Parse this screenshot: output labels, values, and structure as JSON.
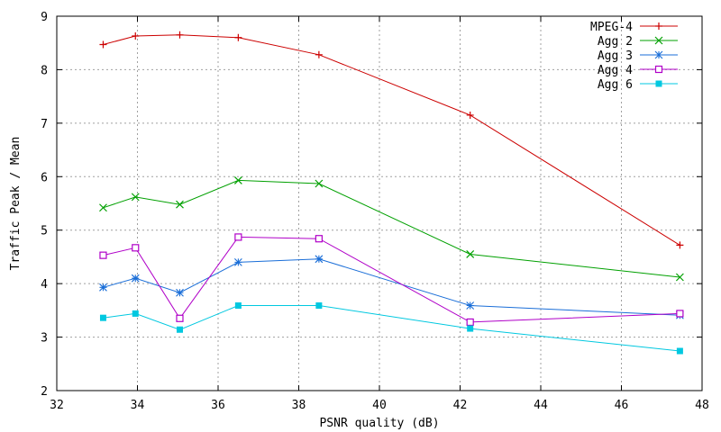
{
  "chart_data": {
    "type": "line",
    "title": "",
    "xlabel": "PSNR quality (dB)",
    "ylabel": "Traffic Peak / Mean",
    "xlim": [
      32,
      48
    ],
    "ylim": [
      2,
      9
    ],
    "xticks": [
      "32",
      "34",
      "36",
      "38",
      "40",
      "42",
      "44",
      "46",
      "48"
    ],
    "yticks": [
      "2",
      "3",
      "4",
      "5",
      "6",
      "7",
      "8",
      "9"
    ],
    "grid": true,
    "legend_position": "top-right",
    "x": [
      33.15,
      33.95,
      35.05,
      36.5,
      38.5,
      42.25,
      47.45
    ],
    "series": [
      {
        "name": "MPEG-4",
        "color": "#cc0000",
        "marker": "plus",
        "values": [
          8.47,
          8.63,
          8.65,
          8.6,
          8.28,
          7.15,
          4.72
        ]
      },
      {
        "name": "Agg 2",
        "color": "#00a000",
        "marker": "cross",
        "values": [
          5.42,
          5.62,
          5.48,
          5.93,
          5.87,
          4.55,
          4.12
        ]
      },
      {
        "name": "Agg 3",
        "color": "#1a6ed8",
        "marker": "star",
        "values": [
          3.93,
          4.1,
          3.83,
          4.4,
          4.46,
          3.59,
          3.41
        ]
      },
      {
        "name": "Agg 4",
        "color": "#b000c8",
        "marker": "open-square",
        "values": [
          4.53,
          4.67,
          3.35,
          4.87,
          4.84,
          3.28,
          3.44
        ]
      },
      {
        "name": "Agg 6",
        "color": "#00c8e0",
        "marker": "filled-square",
        "values": [
          3.36,
          3.44,
          3.14,
          3.59,
          3.59,
          3.16,
          2.74
        ]
      }
    ]
  }
}
